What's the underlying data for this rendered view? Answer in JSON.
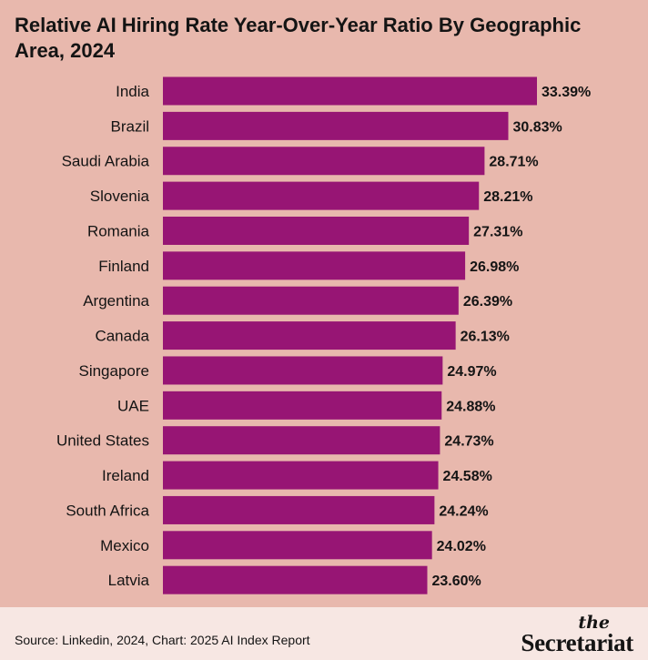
{
  "chart_title": "Relative AI Hiring Rate Year-Over-Year Ratio By Geographic Area, 2024",
  "source_text": "Source: Linkedin, 2024, Chart: 2025 AI Index Report",
  "brand": {
    "the": "the",
    "name": "Secretariat"
  },
  "colors": {
    "background": "#e8b8ad",
    "bar": "#971574",
    "footer": "#f7e7e3",
    "text": "#141414"
  },
  "chart_data": {
    "type": "bar",
    "orientation": "horizontal",
    "title": "Relative AI Hiring Rate Year-Over-Year Ratio By Geographic Area, 2024",
    "categories": [
      "India",
      "Brazil",
      "Saudi Arabia",
      "Slovenia",
      "Romania",
      "Finland",
      "Argentina",
      "Canada",
      "Singapore",
      "UAE",
      "United States",
      "Ireland",
      "South Africa",
      "Mexico",
      "Latvia"
    ],
    "values": [
      33.39,
      30.83,
      28.71,
      28.21,
      27.31,
      26.98,
      26.39,
      26.13,
      24.97,
      24.88,
      24.73,
      24.58,
      24.24,
      24.02,
      23.6
    ],
    "value_labels": [
      "33.39%",
      "30.83%",
      "28.71%",
      "28.21%",
      "27.31%",
      "26.98%",
      "26.39%",
      "26.13%",
      "24.97%",
      "24.88%",
      "24.73%",
      "24.58%",
      "24.24%",
      "24.02%",
      "23.60%"
    ],
    "xlim": [
      0,
      33.39
    ],
    "grid": false,
    "legend": "none"
  }
}
